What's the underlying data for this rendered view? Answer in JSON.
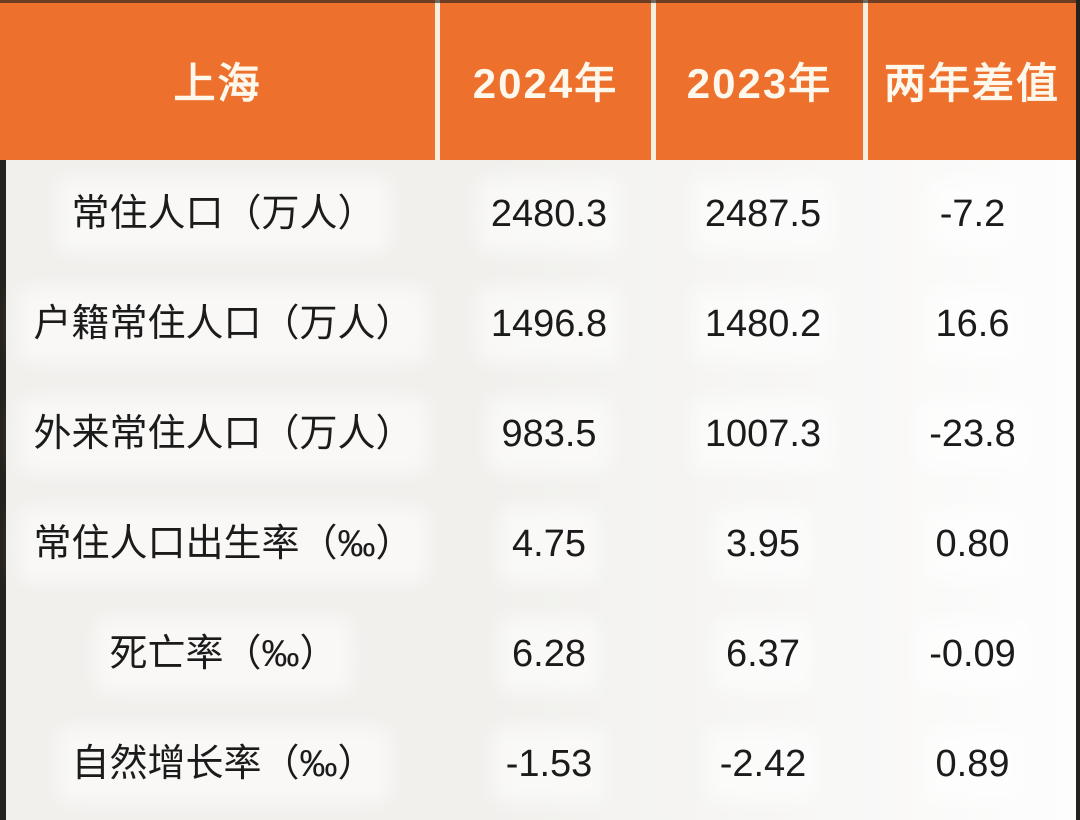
{
  "colors": {
    "header_bg": "#ED702D",
    "header_text": "#FDF7EC",
    "divider": "#F6EFE0",
    "body_text": "#1B1B1B",
    "edge_dark": "#26221E",
    "bg_left": "#F1F0ED",
    "bg_right": "#FDFDFD"
  },
  "chart_data": {
    "type": "table",
    "columns": [
      "上海",
      "2024年",
      "2023年",
      "两年差值"
    ],
    "rows": [
      {
        "label": "常住人口（万人）",
        "values": [
          "2480.3",
          "2487.5",
          "-7.2"
        ]
      },
      {
        "label": "户籍常住人口（万人）",
        "values": [
          "1496.8",
          "1480.2",
          "16.6"
        ]
      },
      {
        "label": "外来常住人口（万人）",
        "values": [
          "983.5",
          "1007.3",
          "-23.8"
        ]
      },
      {
        "label": "常住人口出生率（‰）",
        "values": [
          "4.75",
          "3.95",
          "0.80"
        ]
      },
      {
        "label": "死亡率（‰）",
        "values": [
          "6.28",
          "6.37",
          "-0.09"
        ]
      },
      {
        "label": "自然增长率（‰）",
        "values": [
          "-1.53",
          "-2.42",
          "0.89"
        ]
      }
    ]
  }
}
